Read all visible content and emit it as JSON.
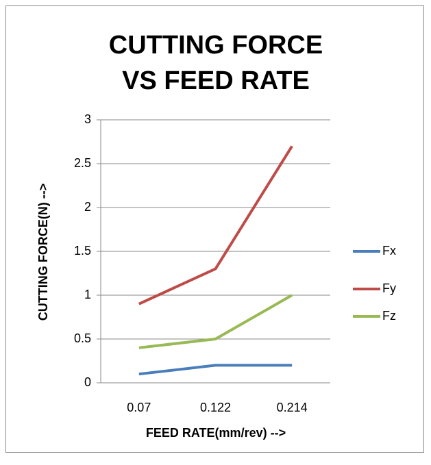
{
  "chart_data": {
    "type": "line",
    "title": "CUTTING FORCE VS FEED RATE",
    "x_label": "FEED RATE(mm/rev) -->",
    "y_label": "CUTTING FORCE(N)  -->",
    "categories": [
      "0.07",
      "0.122",
      "0.214"
    ],
    "series": [
      {
        "name": "Fx",
        "color": "#4a7ebb",
        "values": [
          0.1,
          0.2,
          0.2
        ]
      },
      {
        "name": "Fy",
        "color": "#be4b48",
        "values": [
          0.9,
          1.3,
          2.7
        ]
      },
      {
        "name": "Fz",
        "color": "#98b954",
        "values": [
          0.4,
          0.5,
          1.0
        ]
      }
    ],
    "ylim": [
      0,
      3
    ],
    "yticks": [
      0,
      0.5,
      1,
      1.5,
      2,
      2.5,
      3
    ],
    "grid": true,
    "legend": "right"
  }
}
